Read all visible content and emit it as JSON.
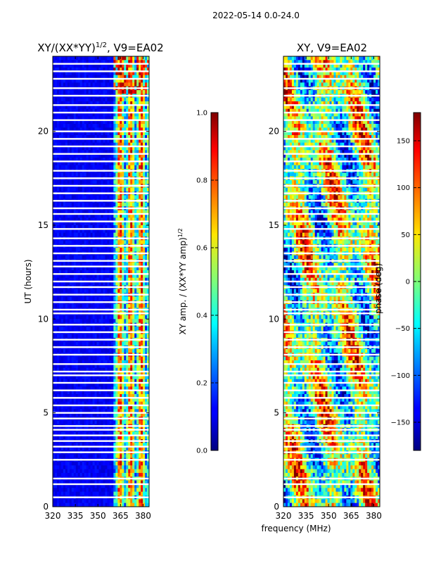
{
  "suptitle": "2022-05-14 0.0-24.0",
  "shared_xlabel": "frequency (MHz)",
  "chart_data": [
    {
      "type": "heatmap",
      "title": "XY/(XX*YY)^(1/2), V9=EA02",
      "title_main": "XY/(XX*YY)",
      "title_sup": "1/2",
      "title_tail": ", V9=EA02",
      "ylabel": "UT (hours)",
      "xlabel": "frequency (MHz)",
      "xlim": [
        320,
        384
      ],
      "ylim": [
        0,
        24
      ],
      "xticks": [
        320,
        335,
        350,
        365,
        380
      ],
      "yticks": [
        0,
        5,
        10,
        15,
        20
      ],
      "active_band_mhz": [
        360,
        384
      ],
      "colorbar": {
        "label": "XY amp. / (XX*YY amp)^(1/2)",
        "label_main": "XY amp. / (XX*YY amp)",
        "label_sup": "1/2",
        "min": 0.0,
        "max": 1.0,
        "ticks": [
          "0.0",
          "0.2",
          "0.4",
          "0.6",
          "0.8",
          "1.0"
        ],
        "colormap": "jet"
      }
    },
    {
      "type": "heatmap",
      "title": "XY, V9=EA02",
      "ylabel": "",
      "xlabel": "frequency (MHz)",
      "xlim": [
        320,
        384
      ],
      "ylim": [
        0,
        24
      ],
      "xticks": [
        320,
        335,
        350,
        365,
        380
      ],
      "yticks": [
        0,
        5,
        10,
        15,
        20
      ],
      "colorbar": {
        "label": "phase (deg)",
        "min": -180,
        "max": 180,
        "ticks": [
          "−150",
          "−100",
          "−50",
          "0",
          "50",
          "100",
          "150"
        ],
        "tick_values": [
          -150,
          -100,
          -50,
          0,
          50,
          100,
          150
        ],
        "colormap": "jet"
      }
    }
  ],
  "flagged_ut_hours": [
    0.5,
    1.2,
    1.5,
    2.5,
    2.9,
    3.2,
    3.5,
    3.8,
    4.1,
    4.3,
    4.7,
    5.0,
    5.4,
    5.8,
    6.2,
    6.6,
    7.0,
    7.2,
    7.6,
    8.1,
    8.5,
    8.9,
    9.3,
    9.7,
    10.3,
    10.5,
    10.9,
    11.3,
    11.7,
    12.0,
    12.4,
    12.8,
    13.1,
    13.5,
    13.9,
    14.3,
    14.8,
    15.2,
    15.6,
    15.9,
    16.3,
    16.7,
    17.1,
    17.5,
    17.9,
    18.4,
    18.8,
    19.2,
    19.6,
    20.0,
    20.6,
    21.0,
    21.4,
    21.9,
    22.3,
    22.8,
    23.2,
    23.6
  ]
}
